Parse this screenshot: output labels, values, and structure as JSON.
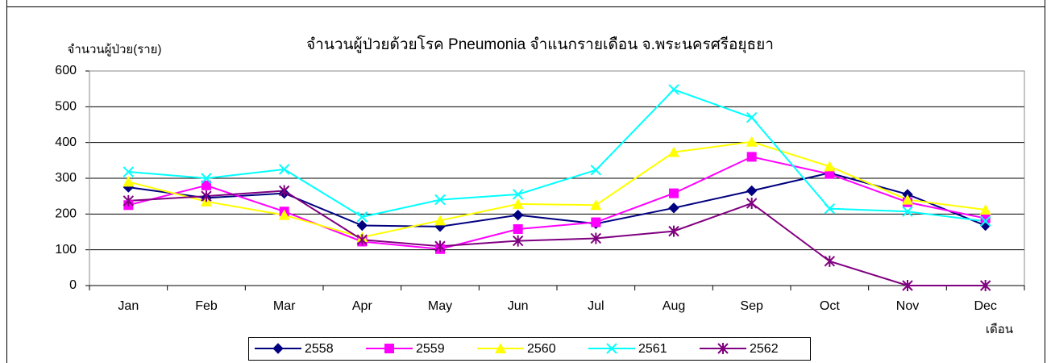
{
  "chart_data": {
    "type": "line",
    "title": "จำนวนผู้ป่วยด้วยโรค  Pneumonia  จำแนกรายเดือน   จ.พระนครศรีอยุธยา",
    "y_label": "จำนวนผู้ป่วย(ราย)",
    "x_label": "เดือน",
    "categories": [
      "Jan",
      "Feb",
      "Mar",
      "Apr",
      "May",
      "Jun",
      "Jul",
      "Aug",
      "Sep",
      "Oct",
      "Nov",
      "Dec"
    ],
    "ylim": [
      0,
      600
    ],
    "yticks": [
      0,
      100,
      200,
      300,
      400,
      500,
      600
    ],
    "grid": true,
    "legend": "bottom",
    "series": [
      {
        "name": "2558",
        "color": "#000080",
        "marker": "diamond",
        "values": [
          275,
          245,
          258,
          168,
          165,
          197,
          173,
          217,
          265,
          315,
          255,
          168
        ]
      },
      {
        "name": "2559",
        "color": "#ff00ff",
        "marker": "square",
        "values": [
          225,
          280,
          207,
          123,
          102,
          158,
          177,
          258,
          360,
          312,
          233,
          188
        ]
      },
      {
        "name": "2560",
        "color": "#ffff00",
        "marker": "triangle",
        "values": [
          290,
          235,
          197,
          135,
          182,
          228,
          225,
          373,
          402,
          333,
          240,
          212
        ]
      },
      {
        "name": "2561",
        "color": "#00ffff",
        "marker": "x",
        "values": [
          318,
          300,
          325,
          192,
          240,
          255,
          323,
          548,
          470,
          215,
          207,
          180
        ]
      },
      {
        "name": "2562",
        "color": "#800080",
        "marker": "star",
        "values": [
          237,
          250,
          265,
          128,
          110,
          125,
          132,
          152,
          230,
          68,
          0,
          0
        ]
      }
    ]
  }
}
